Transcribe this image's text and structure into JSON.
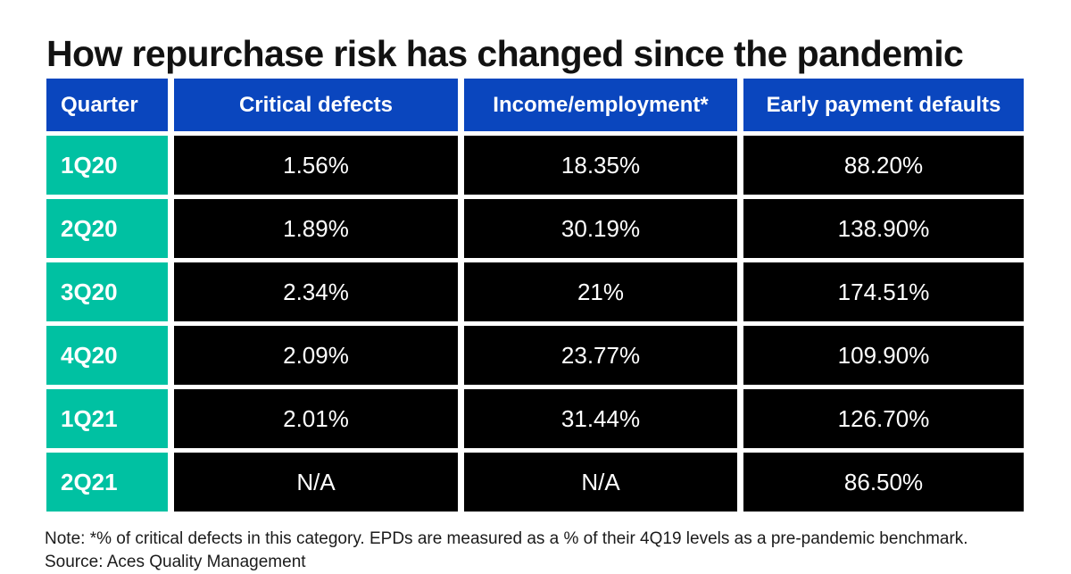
{
  "title": "How repurchase risk has changed since the pandemic",
  "note": {
    "line1": "Note: *% of critical defects in this category. EPDs are measured as a % of their 4Q19 levels as a pre-pandemic benchmark.",
    "line2": "Source: Aces Quality Management"
  },
  "colors": {
    "header_bg": "#0A46BE",
    "quarter_bg": "#00C1A2",
    "cell_bg": "#000000",
    "cell_text": "#FFFFFF",
    "title_text": "#121212"
  },
  "chart_data": {
    "type": "table",
    "title": "How repurchase risk has changed since the pandemic",
    "columns": [
      "Quarter",
      "Critical defects",
      "Income/employment*",
      "Early payment defaults"
    ],
    "rows": [
      {
        "quarter": "1Q20",
        "values": [
          "1.56%",
          "18.35%",
          "88.20%"
        ]
      },
      {
        "quarter": "2Q20",
        "values": [
          "1.89%",
          "30.19%",
          "138.90%"
        ]
      },
      {
        "quarter": "3Q20",
        "values": [
          "2.34%",
          "21%",
          "174.51%"
        ]
      },
      {
        "quarter": "4Q20",
        "values": [
          "2.09%",
          "23.77%",
          "109.90%"
        ]
      },
      {
        "quarter": "1Q21",
        "values": [
          "2.01%",
          "31.44%",
          "126.70%"
        ]
      },
      {
        "quarter": "2Q21",
        "values": [
          "N/A",
          "N/A",
          "86.50%"
        ]
      }
    ],
    "footnote": "Note: *% of critical defects in this category. EPDs are measured as a % of their 4Q19 levels as a pre-pandemic benchmark.",
    "source": "Aces Quality Management",
    "legend": "none",
    "grid": "white gaps between solid cells"
  }
}
